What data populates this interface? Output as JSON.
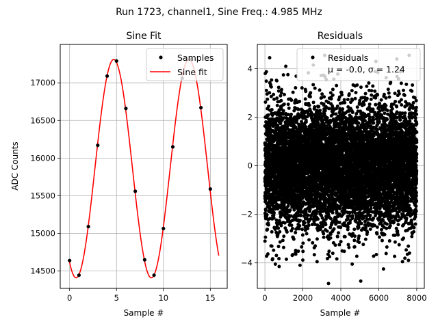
{
  "figure": {
    "suptitle": "Run 1723, channel1, Sine Freq.: 4.985 MHz"
  },
  "chart_data": [
    {
      "type": "line",
      "title": "Sine Fit",
      "xlabel": "Sample #",
      "ylabel": "ADC Counts",
      "xlim": [
        -1,
        16.8
      ],
      "ylim": [
        14270,
        17510
      ],
      "xticks": [
        0,
        5,
        10,
        15
      ],
      "yticks": [
        14500,
        15000,
        15500,
        16000,
        16500,
        17000
      ],
      "grid": true,
      "legend_position": "top-right",
      "fit": {
        "amplitude": 1450,
        "offset": 15860,
        "period": 8.02,
        "phase_peak": 4.7,
        "x_range": [
          0,
          15.9
        ]
      },
      "series": [
        {
          "name": "Samples",
          "style": "points",
          "color": "#000000",
          "x": [
            0,
            1,
            2,
            3,
            4,
            5,
            6,
            7,
            8,
            9,
            10,
            11,
            12,
            13,
            14,
            15
          ],
          "y": [
            14640,
            14445,
            15090,
            16170,
            17090,
            17290,
            16660,
            15560,
            14650,
            14445,
            15065,
            16150,
            17060,
            17310,
            16670,
            15590
          ]
        },
        {
          "name": "Sine fit",
          "style": "line",
          "color": "#ff0000"
        }
      ]
    },
    {
      "type": "scatter",
      "title": "Residuals",
      "xlabel": "Sample #",
      "ylabel": "",
      "xlim": [
        -400,
        8400
      ],
      "ylim": [
        -5.05,
        5.0
      ],
      "xticks": [
        0,
        2000,
        4000,
        6000,
        8000
      ],
      "yticks": [
        -4,
        -2,
        0,
        2,
        4
      ],
      "grid": true,
      "legend_position": "top-right",
      "point_count": 8000,
      "series": [
        {
          "name": "Residuals",
          "legend_stats": "μ = -0.0, σ = 1.24",
          "color": "#000000",
          "x_range": [
            0,
            8000
          ],
          "mean": 0.0,
          "std": 1.24,
          "outliers": [
            {
              "x": 250,
              "y": 4.45
            },
            {
              "x": 3350,
              "y": -4.85
            },
            {
              "x": 5050,
              "y": -4.75
            },
            {
              "x": 3150,
              "y": 4.55
            },
            {
              "x": 7600,
              "y": 4.55
            },
            {
              "x": 550,
              "y": -4.05
            },
            {
              "x": 750,
              "y": -4.15
            },
            {
              "x": 1850,
              "y": -4.1
            },
            {
              "x": 2750,
              "y": -3.95
            },
            {
              "x": 4600,
              "y": -4.05
            },
            {
              "x": 6250,
              "y": -4.25
            },
            {
              "x": 7250,
              "y": -3.95
            },
            {
              "x": 2550,
              "y": 4.15
            },
            {
              "x": 1100,
              "y": 4.1
            },
            {
              "x": 5850,
              "y": 4.3
            },
            {
              "x": 6950,
              "y": 4.4
            }
          ]
        }
      ]
    }
  ]
}
